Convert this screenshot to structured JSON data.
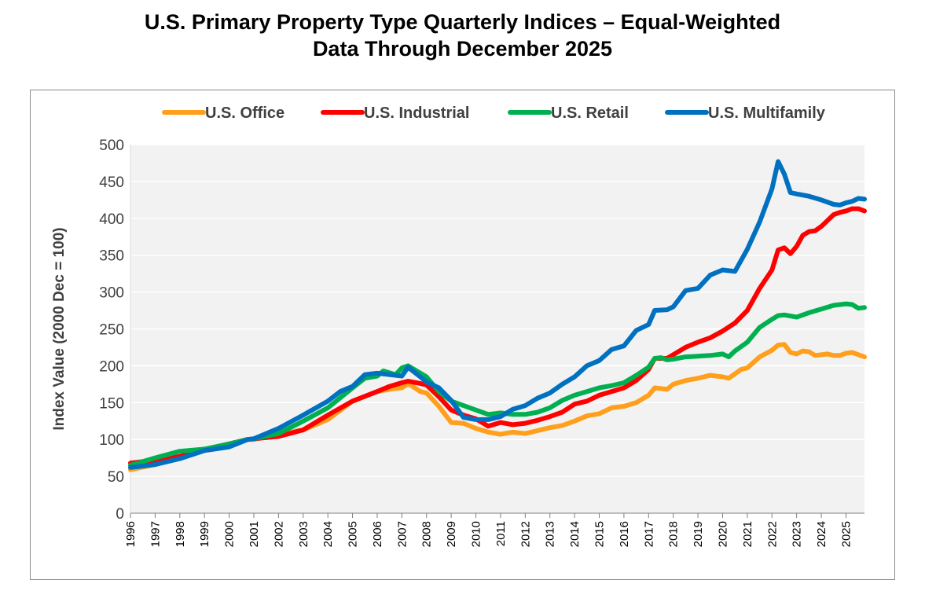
{
  "title_line1": "U.S. Primary Property Type Quarterly Indices – Equal-Weighted",
  "title_line2": "Data Through December 2025",
  "chart_data": {
    "type": "line",
    "ylabel": "Index Value (2000 Dec = 100)",
    "xlabel": "",
    "ylim": [
      0,
      500
    ],
    "yticks": [
      0,
      50,
      100,
      150,
      200,
      250,
      300,
      350,
      400,
      450,
      500
    ],
    "xlim": [
      1996,
      2025.75
    ],
    "xticks": [
      "1996",
      "1997",
      "1998",
      "1999",
      "2000",
      "2001",
      "2002",
      "2003",
      "2004",
      "2005",
      "2006",
      "2007",
      "2008",
      "2009",
      "2010",
      "2011",
      "2012",
      "2013",
      "2014",
      "2015",
      "2016",
      "2017",
      "2018",
      "2019",
      "2020",
      "2021",
      "2022",
      "2023",
      "2024",
      "2025"
    ],
    "grid": true,
    "legend_position": "top",
    "series": [
      {
        "name": "U.S. Office",
        "color": "#FF9F1C",
        "points": [
          [
            1996,
            59
          ],
          [
            1997,
            66
          ],
          [
            1998,
            77
          ],
          [
            1999,
            86
          ],
          [
            2000,
            93
          ],
          [
            2000.75,
            100
          ],
          [
            2001,
            100
          ],
          [
            2002,
            107
          ],
          [
            2003,
            113
          ],
          [
            2004,
            127
          ],
          [
            2005,
            152
          ],
          [
            2006,
            165
          ],
          [
            2006.5,
            168
          ],
          [
            2007,
            170
          ],
          [
            2007.25,
            176
          ],
          [
            2007.75,
            165
          ],
          [
            2008,
            163
          ],
          [
            2008.5,
            145
          ],
          [
            2009,
            123
          ],
          [
            2009.5,
            122
          ],
          [
            2010,
            115
          ],
          [
            2010.5,
            110
          ],
          [
            2011,
            107
          ],
          [
            2011.5,
            110
          ],
          [
            2012,
            108
          ],
          [
            2012.5,
            112
          ],
          [
            2013,
            116
          ],
          [
            2013.5,
            119
          ],
          [
            2014,
            125
          ],
          [
            2014.5,
            132
          ],
          [
            2015,
            135
          ],
          [
            2015.5,
            143
          ],
          [
            2016,
            145
          ],
          [
            2016.5,
            150
          ],
          [
            2017,
            160
          ],
          [
            2017.25,
            170
          ],
          [
            2017.75,
            168
          ],
          [
            2018,
            175
          ],
          [
            2018.5,
            180
          ],
          [
            2019,
            183
          ],
          [
            2019.5,
            187
          ],
          [
            2020,
            185
          ],
          [
            2020.25,
            183
          ],
          [
            2020.75,
            195
          ],
          [
            2021,
            197
          ],
          [
            2021.5,
            212
          ],
          [
            2022,
            221
          ],
          [
            2022.25,
            228
          ],
          [
            2022.5,
            229
          ],
          [
            2022.75,
            218
          ],
          [
            2023,
            216
          ],
          [
            2023.25,
            220
          ],
          [
            2023.5,
            219
          ],
          [
            2023.75,
            214
          ],
          [
            2024,
            215
          ],
          [
            2024.25,
            216
          ],
          [
            2024.5,
            214
          ],
          [
            2024.75,
            214
          ],
          [
            2025,
            217
          ],
          [
            2025.25,
            218
          ],
          [
            2025.5,
            215
          ],
          [
            2025.75,
            212
          ]
        ]
      },
      {
        "name": "U.S. Industrial",
        "color": "#FF0000",
        "points": [
          [
            1996,
            68
          ],
          [
            1997,
            72
          ],
          [
            1998,
            77
          ],
          [
            1999,
            86
          ],
          [
            2000,
            94
          ],
          [
            2000.75,
            100
          ],
          [
            2001,
            101
          ],
          [
            2002,
            104
          ],
          [
            2003,
            113
          ],
          [
            2004,
            133
          ],
          [
            2005,
            152
          ],
          [
            2006,
            165
          ],
          [
            2006.5,
            172
          ],
          [
            2007,
            177
          ],
          [
            2007.25,
            179
          ],
          [
            2007.75,
            176
          ],
          [
            2008,
            174
          ],
          [
            2008.5,
            158
          ],
          [
            2009,
            140
          ],
          [
            2009.5,
            133
          ],
          [
            2010,
            128
          ],
          [
            2010.5,
            118
          ],
          [
            2011,
            123
          ],
          [
            2011.5,
            120
          ],
          [
            2012,
            122
          ],
          [
            2012.5,
            126
          ],
          [
            2013,
            131
          ],
          [
            2013.5,
            137
          ],
          [
            2014,
            148
          ],
          [
            2014.5,
            152
          ],
          [
            2015,
            160
          ],
          [
            2015.5,
            165
          ],
          [
            2016,
            170
          ],
          [
            2016.5,
            180
          ],
          [
            2017,
            195
          ],
          [
            2017.25,
            210
          ],
          [
            2017.75,
            210
          ],
          [
            2018,
            215
          ],
          [
            2018.5,
            225
          ],
          [
            2019,
            232
          ],
          [
            2019.5,
            238
          ],
          [
            2020,
            247
          ],
          [
            2020.5,
            258
          ],
          [
            2021,
            275
          ],
          [
            2021.5,
            305
          ],
          [
            2022,
            330
          ],
          [
            2022.25,
            357
          ],
          [
            2022.5,
            360
          ],
          [
            2022.75,
            352
          ],
          [
            2023,
            362
          ],
          [
            2023.25,
            377
          ],
          [
            2023.5,
            382
          ],
          [
            2023.75,
            383
          ],
          [
            2024,
            389
          ],
          [
            2024.25,
            397
          ],
          [
            2024.5,
            405
          ],
          [
            2024.75,
            408
          ],
          [
            2025,
            410
          ],
          [
            2025.25,
            413
          ],
          [
            2025.5,
            413
          ],
          [
            2025.75,
            410
          ]
        ]
      },
      {
        "name": "U.S. Retail",
        "color": "#00B050",
        "points": [
          [
            1996,
            65
          ],
          [
            1997,
            75
          ],
          [
            1998,
            84
          ],
          [
            1999,
            87
          ],
          [
            2000,
            94
          ],
          [
            2000.75,
            100
          ],
          [
            2001,
            101
          ],
          [
            2002,
            108
          ],
          [
            2003,
            125
          ],
          [
            2004,
            143
          ],
          [
            2005,
            170
          ],
          [
            2005.5,
            183
          ],
          [
            2006,
            186
          ],
          [
            2006.25,
            193
          ],
          [
            2006.75,
            188
          ],
          [
            2007,
            197
          ],
          [
            2007.25,
            200
          ],
          [
            2007.75,
            190
          ],
          [
            2008,
            185
          ],
          [
            2008.5,
            165
          ],
          [
            2009,
            152
          ],
          [
            2009.5,
            146
          ],
          [
            2010,
            140
          ],
          [
            2010.5,
            134
          ],
          [
            2011,
            136
          ],
          [
            2011.5,
            134
          ],
          [
            2012,
            134
          ],
          [
            2012.5,
            137
          ],
          [
            2013,
            143
          ],
          [
            2013.5,
            153
          ],
          [
            2014,
            160
          ],
          [
            2014.5,
            165
          ],
          [
            2015,
            170
          ],
          [
            2015.5,
            173
          ],
          [
            2016,
            177
          ],
          [
            2016.5,
            187
          ],
          [
            2017,
            198
          ],
          [
            2017.25,
            210
          ],
          [
            2017.5,
            211
          ],
          [
            2017.75,
            208
          ],
          [
            2018,
            209
          ],
          [
            2018.5,
            212
          ],
          [
            2019,
            213
          ],
          [
            2019.5,
            214
          ],
          [
            2020,
            216
          ],
          [
            2020.25,
            212
          ],
          [
            2020.5,
            220
          ],
          [
            2021,
            232
          ],
          [
            2021.5,
            252
          ],
          [
            2022,
            263
          ],
          [
            2022.25,
            268
          ],
          [
            2022.5,
            269
          ],
          [
            2023,
            266
          ],
          [
            2023.5,
            272
          ],
          [
            2024,
            277
          ],
          [
            2024.5,
            282
          ],
          [
            2025,
            284
          ],
          [
            2025.25,
            283
          ],
          [
            2025.5,
            278
          ],
          [
            2025.75,
            279
          ]
        ]
      },
      {
        "name": "U.S. Multifamily",
        "color": "#0070C0",
        "points": [
          [
            1996,
            62
          ],
          [
            1997,
            66
          ],
          [
            1998,
            74
          ],
          [
            1999,
            85
          ],
          [
            2000,
            90
          ],
          [
            2000.75,
            100
          ],
          [
            2001,
            101
          ],
          [
            2002,
            115
          ],
          [
            2003,
            133
          ],
          [
            2004,
            152
          ],
          [
            2004.5,
            165
          ],
          [
            2005,
            172
          ],
          [
            2005.5,
            188
          ],
          [
            2006,
            190
          ],
          [
            2006.5,
            188
          ],
          [
            2007,
            186
          ],
          [
            2007.25,
            198
          ],
          [
            2007.75,
            185
          ],
          [
            2008,
            178
          ],
          [
            2008.5,
            170
          ],
          [
            2009,
            153
          ],
          [
            2009.5,
            130
          ],
          [
            2010,
            127
          ],
          [
            2010.5,
            127
          ],
          [
            2011,
            131
          ],
          [
            2011.5,
            141
          ],
          [
            2012,
            146
          ],
          [
            2012.5,
            156
          ],
          [
            2013,
            163
          ],
          [
            2013.5,
            175
          ],
          [
            2014,
            185
          ],
          [
            2014.5,
            200
          ],
          [
            2015,
            207
          ],
          [
            2015.5,
            222
          ],
          [
            2016,
            227
          ],
          [
            2016.5,
            248
          ],
          [
            2017,
            256
          ],
          [
            2017.25,
            275
          ],
          [
            2017.75,
            276
          ],
          [
            2018,
            280
          ],
          [
            2018.5,
            302
          ],
          [
            2019,
            305
          ],
          [
            2019.5,
            323
          ],
          [
            2020,
            330
          ],
          [
            2020.5,
            328
          ],
          [
            2021,
            358
          ],
          [
            2021.5,
            395
          ],
          [
            2022,
            440
          ],
          [
            2022.25,
            477
          ],
          [
            2022.5,
            460
          ],
          [
            2022.75,
            435
          ],
          [
            2023,
            433
          ],
          [
            2023.5,
            430
          ],
          [
            2024,
            425
          ],
          [
            2024.25,
            422
          ],
          [
            2024.5,
            419
          ],
          [
            2024.75,
            418
          ],
          [
            2025,
            421
          ],
          [
            2025.25,
            423
          ],
          [
            2025.5,
            427
          ],
          [
            2025.75,
            426
          ]
        ]
      }
    ]
  }
}
